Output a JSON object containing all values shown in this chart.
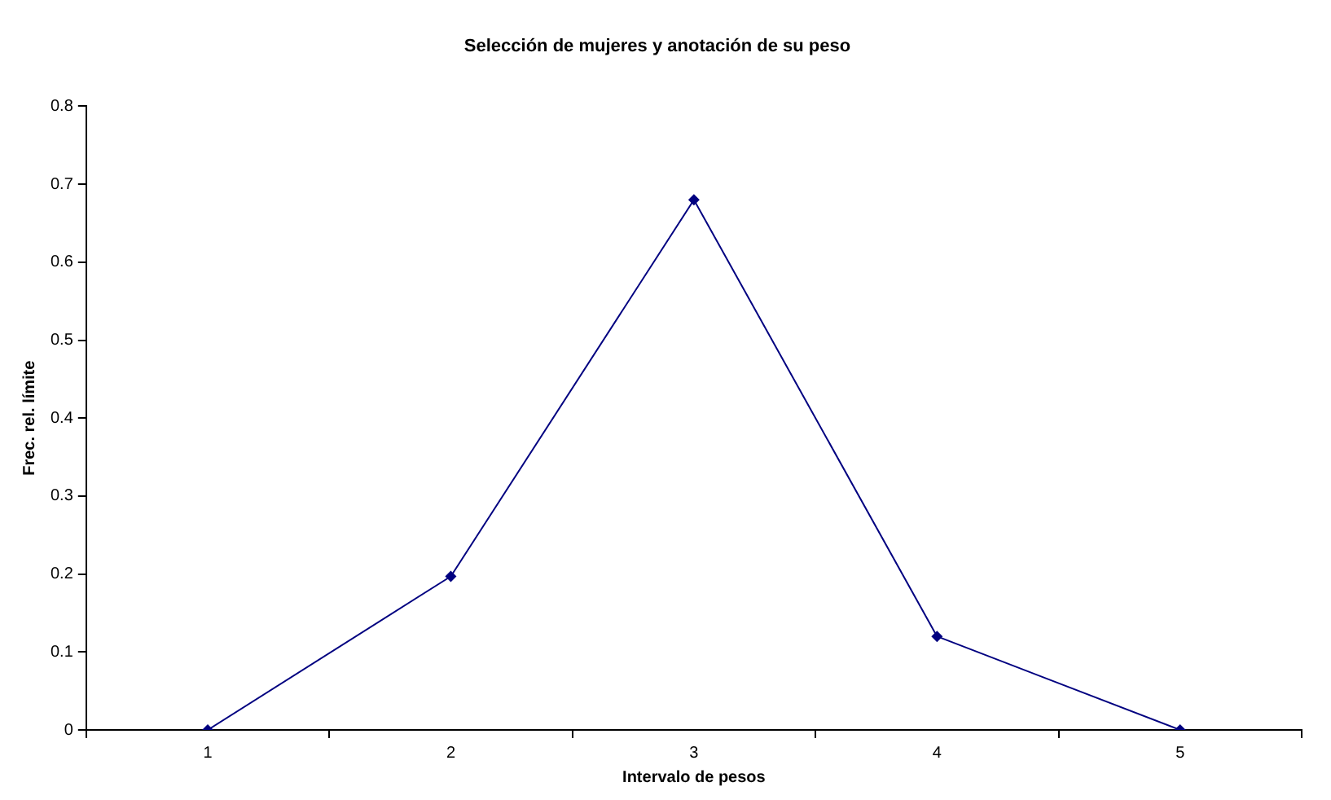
{
  "chart_data": {
    "type": "line",
    "title": "Selección de mujeres y anotación de su peso",
    "xlabel": "Intervalo de pesos",
    "ylabel": "Frec. rel. límite",
    "categories": [
      "1",
      "2",
      "3",
      "4",
      "5"
    ],
    "series": [
      {
        "color": "#000080",
        "values": [
          0,
          0.197,
          0.68,
          0.12,
          0
        ]
      }
    ],
    "ylim": [
      0,
      0.8
    ],
    "yticks": [
      0,
      0.1,
      0.2,
      0.3,
      0.4,
      0.5,
      0.6,
      0.7,
      0.8
    ],
    "grid": false,
    "marker": "diamond",
    "line_style": "solid"
  }
}
